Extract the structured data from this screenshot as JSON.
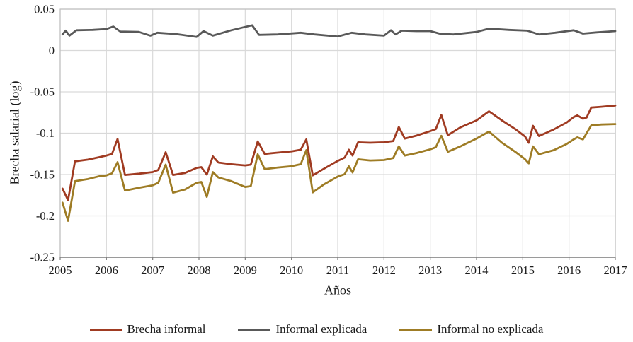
{
  "axis": {
    "x_title": "Años",
    "y_title": "Brecha salarial (log)"
  },
  "legend": {
    "items": [
      {
        "label": "Brecha informal"
      },
      {
        "label": "Informal explicada"
      },
      {
        "label": "Informal no explicada"
      }
    ]
  },
  "colors": {
    "gridline": "#d9d9d9",
    "border": "#bfbfbf",
    "axis_line": "#7f7f7f",
    "text": "#1a1a1a"
  },
  "chart_data": {
    "type": "line",
    "title": "",
    "xlabel": "Años",
    "ylabel": "Brecha salarial (log)",
    "xlim": [
      2005,
      2017
    ],
    "ylim": [
      -0.25,
      0.05
    ],
    "grid": true,
    "legend_position": "bottom",
    "x_ticks": [
      {
        "label": "2005",
        "value": 2005
      },
      {
        "label": "2006",
        "value": 2006
      },
      {
        "label": "2007",
        "value": 2007
      },
      {
        "label": "2008",
        "value": 2008
      },
      {
        "label": "2009",
        "value": 2009
      },
      {
        "label": "2010",
        "value": 2010
      },
      {
        "label": "2011",
        "value": 2011
      },
      {
        "label": "2012",
        "value": 2012
      },
      {
        "label": "2013",
        "value": 2013
      },
      {
        "label": "2014",
        "value": 2014
      },
      {
        "label": "2015",
        "value": 2015
      },
      {
        "label": "2016",
        "value": 2016
      },
      {
        "label": "2017",
        "value": 2017
      }
    ],
    "y_ticks": [
      {
        "label": "0.05",
        "value": 0.05
      },
      {
        "label": "0",
        "value": 0
      },
      {
        "label": "-0.05",
        "value": -0.05
      },
      {
        "label": "-0.1",
        "value": -0.1
      },
      {
        "label": "-0.15",
        "value": -0.15
      },
      {
        "label": "-0.2",
        "value": -0.2
      },
      {
        "label": "-0.25",
        "value": -0.25
      }
    ],
    "series": [
      {
        "name": "Brecha informal",
        "color": "#a03b22",
        "points": [
          [
            2005.05,
            -0.167
          ],
          [
            2005.17,
            -0.181
          ],
          [
            2005.32,
            -0.134
          ],
          [
            2005.6,
            -0.132
          ],
          [
            2005.85,
            -0.129
          ],
          [
            2006.0,
            -0.127
          ],
          [
            2006.12,
            -0.125
          ],
          [
            2006.24,
            -0.107
          ],
          [
            2006.4,
            -0.1505
          ],
          [
            2006.7,
            -0.149
          ],
          [
            2007.0,
            -0.147
          ],
          [
            2007.12,
            -0.1445
          ],
          [
            2007.28,
            -0.123
          ],
          [
            2007.44,
            -0.1505
          ],
          [
            2007.7,
            -0.148
          ],
          [
            2007.95,
            -0.142
          ],
          [
            2008.05,
            -0.141
          ],
          [
            2008.17,
            -0.15
          ],
          [
            2008.3,
            -0.128
          ],
          [
            2008.42,
            -0.1355
          ],
          [
            2008.7,
            -0.1375
          ],
          [
            2009.0,
            -0.139
          ],
          [
            2009.12,
            -0.138
          ],
          [
            2009.27,
            -0.11
          ],
          [
            2009.42,
            -0.125
          ],
          [
            2009.7,
            -0.1235
          ],
          [
            2010.0,
            -0.122
          ],
          [
            2010.2,
            -0.12
          ],
          [
            2010.32,
            -0.1075
          ],
          [
            2010.46,
            -0.151
          ],
          [
            2010.7,
            -0.143
          ],
          [
            2011.0,
            -0.1335
          ],
          [
            2011.15,
            -0.1295
          ],
          [
            2011.24,
            -0.12
          ],
          [
            2011.32,
            -0.127
          ],
          [
            2011.44,
            -0.111
          ],
          [
            2011.7,
            -0.1115
          ],
          [
            2012.0,
            -0.111
          ],
          [
            2012.2,
            -0.1095
          ],
          [
            2012.32,
            -0.0925
          ],
          [
            2012.45,
            -0.1065
          ],
          [
            2012.7,
            -0.103
          ],
          [
            2013.0,
            -0.0975
          ],
          [
            2013.12,
            -0.095
          ],
          [
            2013.24,
            -0.078
          ],
          [
            2013.38,
            -0.1025
          ],
          [
            2013.65,
            -0.093
          ],
          [
            2014.0,
            -0.0845
          ],
          [
            2014.27,
            -0.0735
          ],
          [
            2014.55,
            -0.0845
          ],
          [
            2014.85,
            -0.0955
          ],
          [
            2015.05,
            -0.104
          ],
          [
            2015.13,
            -0.1115
          ],
          [
            2015.22,
            -0.091
          ],
          [
            2015.35,
            -0.1035
          ],
          [
            2015.67,
            -0.0955
          ],
          [
            2015.95,
            -0.087
          ],
          [
            2016.1,
            -0.0805
          ],
          [
            2016.18,
            -0.0785
          ],
          [
            2016.3,
            -0.0825
          ],
          [
            2016.38,
            -0.081
          ],
          [
            2016.48,
            -0.069
          ],
          [
            2016.7,
            -0.068
          ],
          [
            2017.0,
            -0.0665
          ]
        ]
      },
      {
        "name": "Informal explicada",
        "color": "#595959",
        "points": [
          [
            2005.05,
            0.0195
          ],
          [
            2005.12,
            0.024
          ],
          [
            2005.2,
            0.018
          ],
          [
            2005.35,
            0.0245
          ],
          [
            2005.7,
            0.025
          ],
          [
            2006.0,
            0.026
          ],
          [
            2006.15,
            0.029
          ],
          [
            2006.3,
            0.023
          ],
          [
            2006.7,
            0.0225
          ],
          [
            2006.95,
            0.018
          ],
          [
            2007.1,
            0.0215
          ],
          [
            2007.5,
            0.02
          ],
          [
            2007.95,
            0.0165
          ],
          [
            2008.1,
            0.0235
          ],
          [
            2008.3,
            0.018
          ],
          [
            2008.7,
            0.0245
          ],
          [
            2009.15,
            0.0305
          ],
          [
            2009.3,
            0.019
          ],
          [
            2009.7,
            0.0195
          ],
          [
            2010.2,
            0.0215
          ],
          [
            2010.5,
            0.0195
          ],
          [
            2011.0,
            0.017
          ],
          [
            2011.3,
            0.0215
          ],
          [
            2011.6,
            0.0195
          ],
          [
            2012.0,
            0.018
          ],
          [
            2012.15,
            0.0245
          ],
          [
            2012.25,
            0.0195
          ],
          [
            2012.38,
            0.024
          ],
          [
            2012.7,
            0.0235
          ],
          [
            2013.0,
            0.0235
          ],
          [
            2013.2,
            0.0205
          ],
          [
            2013.5,
            0.0195
          ],
          [
            2014.0,
            0.0225
          ],
          [
            2014.27,
            0.0265
          ],
          [
            2014.7,
            0.025
          ],
          [
            2015.1,
            0.024
          ],
          [
            2015.35,
            0.0195
          ],
          [
            2015.7,
            0.0215
          ],
          [
            2016.1,
            0.0245
          ],
          [
            2016.3,
            0.0205
          ],
          [
            2016.6,
            0.022
          ],
          [
            2017.0,
            0.0235
          ]
        ]
      },
      {
        "name": "Informal no explicada",
        "color": "#9e7c25",
        "points": [
          [
            2005.05,
            -0.184
          ],
          [
            2005.17,
            -0.206
          ],
          [
            2005.32,
            -0.158
          ],
          [
            2005.6,
            -0.1555
          ],
          [
            2005.85,
            -0.152
          ],
          [
            2006.0,
            -0.151
          ],
          [
            2006.12,
            -0.1485
          ],
          [
            2006.24,
            -0.135
          ],
          [
            2006.4,
            -0.1695
          ],
          [
            2006.7,
            -0.166
          ],
          [
            2007.0,
            -0.163
          ],
          [
            2007.12,
            -0.16
          ],
          [
            2007.28,
            -0.138
          ],
          [
            2007.44,
            -0.172
          ],
          [
            2007.7,
            -0.168
          ],
          [
            2007.95,
            -0.16
          ],
          [
            2008.05,
            -0.159
          ],
          [
            2008.17,
            -0.177
          ],
          [
            2008.3,
            -0.147
          ],
          [
            2008.42,
            -0.1535
          ],
          [
            2008.7,
            -0.158
          ],
          [
            2009.0,
            -0.165
          ],
          [
            2009.12,
            -0.164
          ],
          [
            2009.27,
            -0.1255
          ],
          [
            2009.42,
            -0.1435
          ],
          [
            2009.7,
            -0.1415
          ],
          [
            2010.0,
            -0.14
          ],
          [
            2010.2,
            -0.1375
          ],
          [
            2010.32,
            -0.1205
          ],
          [
            2010.46,
            -0.1715
          ],
          [
            2010.7,
            -0.162
          ],
          [
            2011.0,
            -0.1525
          ],
          [
            2011.15,
            -0.1495
          ],
          [
            2011.24,
            -0.14
          ],
          [
            2011.32,
            -0.1475
          ],
          [
            2011.44,
            -0.1315
          ],
          [
            2011.7,
            -0.133
          ],
          [
            2012.0,
            -0.1325
          ],
          [
            2012.2,
            -0.13
          ],
          [
            2012.32,
            -0.116
          ],
          [
            2012.45,
            -0.127
          ],
          [
            2012.7,
            -0.124
          ],
          [
            2013.0,
            -0.1195
          ],
          [
            2013.12,
            -0.117
          ],
          [
            2013.24,
            -0.1032
          ],
          [
            2013.38,
            -0.1225
          ],
          [
            2013.65,
            -0.116
          ],
          [
            2014.0,
            -0.1065
          ],
          [
            2014.27,
            -0.098
          ],
          [
            2014.55,
            -0.1115
          ],
          [
            2014.85,
            -0.123
          ],
          [
            2015.05,
            -0.1315
          ],
          [
            2015.13,
            -0.1365
          ],
          [
            2015.22,
            -0.116
          ],
          [
            2015.35,
            -0.1255
          ],
          [
            2015.67,
            -0.1205
          ],
          [
            2015.95,
            -0.113
          ],
          [
            2016.1,
            -0.1075
          ],
          [
            2016.18,
            -0.105
          ],
          [
            2016.3,
            -0.1075
          ],
          [
            2016.38,
            -0.1
          ],
          [
            2016.48,
            -0.0905
          ],
          [
            2016.7,
            -0.0895
          ],
          [
            2017.0,
            -0.089
          ]
        ]
      }
    ]
  }
}
